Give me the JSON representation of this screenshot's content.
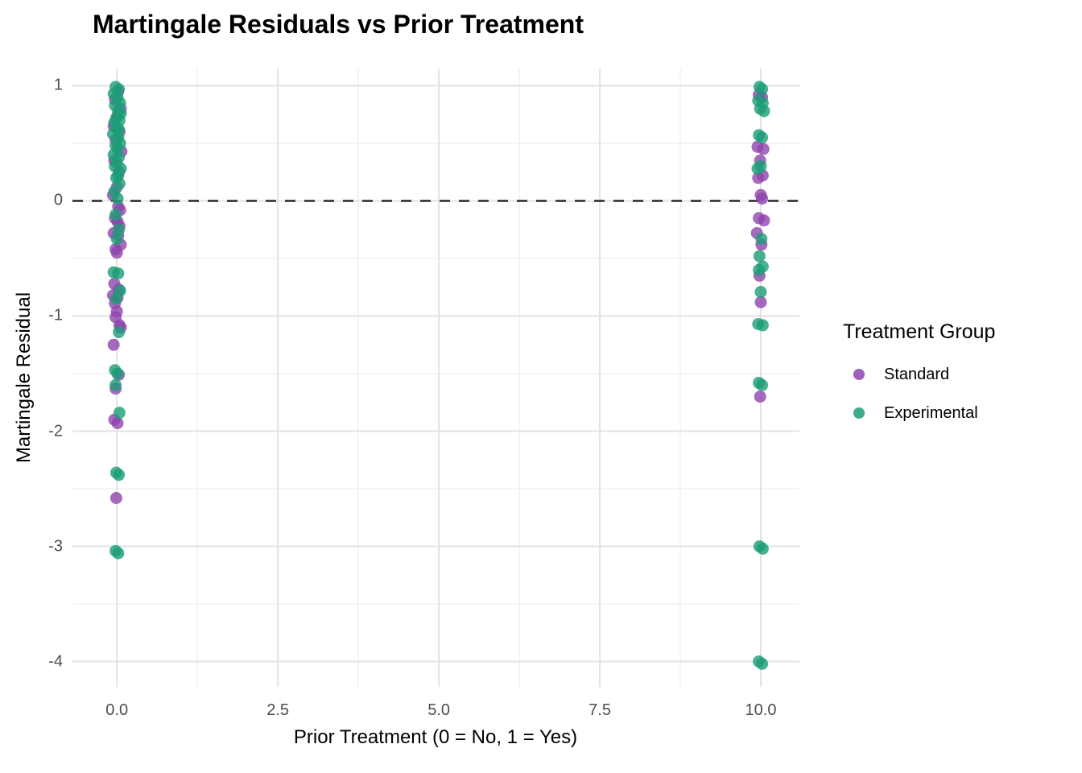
{
  "chart_data": {
    "type": "scatter",
    "title": "Martingale Residuals vs Prior Treatment",
    "xlabel": "Prior Treatment (0 = No, 1 = Yes)",
    "ylabel": "Martingale Residual",
    "x_domain": [
      -0.69,
      10.6
    ],
    "y_domain": [
      -4.22,
      1.15
    ],
    "x_ticks": [
      {
        "v": 0,
        "label": "0.0"
      },
      {
        "v": 2.5,
        "label": "2.5"
      },
      {
        "v": 5,
        "label": "5.0"
      },
      {
        "v": 7.5,
        "label": "7.5"
      },
      {
        "v": 10,
        "label": "10.0"
      }
    ],
    "y_ticks": [
      {
        "v": 1,
        "label": "1"
      },
      {
        "v": 0,
        "label": "0"
      },
      {
        "v": -1,
        "label": "-1"
      },
      {
        "v": -2,
        "label": "-2"
      },
      {
        "v": -3,
        "label": "-3"
      },
      {
        "v": -4,
        "label": "-4"
      }
    ],
    "x_minor": [
      1.25,
      3.75,
      6.25,
      8.75
    ],
    "y_minor": [
      0.5,
      -0.5,
      -1.5,
      -2.5,
      -3.5
    ],
    "grid": "on",
    "reference_line": {
      "y": 0,
      "style": "dashed",
      "color": "#262626"
    },
    "legend": {
      "title": "Treatment Group",
      "position": "right"
    },
    "point_alpha": 0.8,
    "point_radius": 7.5,
    "series": [
      {
        "name": "Standard",
        "color": "#8E44AD",
        "points": [
          [
            0.02,
            0.95
          ],
          [
            -0.03,
            0.88
          ],
          [
            0.06,
            0.8
          ],
          [
            0.01,
            0.74
          ],
          [
            -0.05,
            0.65
          ],
          [
            0.04,
            0.6
          ],
          [
            -0.02,
            0.53
          ],
          [
            0.07,
            0.43
          ],
          [
            -0.04,
            0.35
          ],
          [
            0.03,
            0.25
          ],
          [
            0.0,
            0.12
          ],
          [
            -0.06,
            0.05
          ],
          [
            0.02,
            -0.05
          ],
          [
            0.05,
            -0.08
          ],
          [
            -0.03,
            -0.15
          ],
          [
            0.01,
            -0.18
          ],
          [
            0.04,
            -0.22
          ],
          [
            -0.05,
            -0.28
          ],
          [
            0.02,
            -0.3
          ],
          [
            0.06,
            -0.38
          ],
          [
            -0.02,
            -0.42
          ],
          [
            0.0,
            -0.45
          ],
          [
            -0.04,
            -0.72
          ],
          [
            0.03,
            -0.77
          ],
          [
            -0.06,
            -0.82
          ],
          [
            0.01,
            -0.84
          ],
          [
            -0.03,
            -0.89
          ],
          [
            0.0,
            -0.96
          ],
          [
            -0.02,
            -1.01
          ],
          [
            0.04,
            -1.08
          ],
          [
            0.06,
            -1.1
          ],
          [
            -0.05,
            -1.25
          ],
          [
            0.03,
            -1.51
          ],
          [
            -0.02,
            -1.63
          ],
          [
            -0.04,
            -1.9
          ],
          [
            0.01,
            -1.93
          ],
          [
            -0.01,
            -2.58
          ],
          [
            9.97,
            0.92
          ],
          [
            10.02,
            0.9
          ],
          [
            9.95,
            0.47
          ],
          [
            10.04,
            0.45
          ],
          [
            9.99,
            0.35
          ],
          [
            10.03,
            0.22
          ],
          [
            9.96,
            0.2
          ],
          [
            10.0,
            0.05
          ],
          [
            10.02,
            0.02
          ],
          [
            9.97,
            -0.15
          ],
          [
            10.05,
            -0.17
          ],
          [
            9.94,
            -0.28
          ],
          [
            10.01,
            -0.38
          ],
          [
            9.98,
            -0.65
          ],
          [
            10.0,
            -0.88
          ],
          [
            9.99,
            -1.7
          ]
        ]
      },
      {
        "name": "Experimental",
        "color": "#1B9E77",
        "points": [
          [
            -0.02,
            0.99
          ],
          [
            0.03,
            0.97
          ],
          [
            -0.05,
            0.93
          ],
          [
            0.01,
            0.9
          ],
          [
            0.05,
            0.85
          ],
          [
            -0.03,
            0.83
          ],
          [
            0.02,
            0.78
          ],
          [
            0.06,
            0.76
          ],
          [
            -0.01,
            0.72
          ],
          [
            0.04,
            0.7
          ],
          [
            -0.04,
            0.68
          ],
          [
            0.0,
            0.63
          ],
          [
            0.03,
            0.62
          ],
          [
            -0.06,
            0.58
          ],
          [
            0.02,
            0.55
          ],
          [
            0.05,
            0.5
          ],
          [
            -0.02,
            0.48
          ],
          [
            0.01,
            0.45
          ],
          [
            -0.05,
            0.4
          ],
          [
            0.03,
            0.38
          ],
          [
            0.0,
            0.33
          ],
          [
            -0.03,
            0.3
          ],
          [
            0.06,
            0.28
          ],
          [
            0.02,
            0.22
          ],
          [
            -0.01,
            0.2
          ],
          [
            0.04,
            0.15
          ],
          [
            -0.04,
            0.08
          ],
          [
            0.01,
            0.02
          ],
          [
            -0.02,
            -0.12
          ],
          [
            0.03,
            -0.25
          ],
          [
            0.0,
            -0.33
          ],
          [
            -0.05,
            -0.62
          ],
          [
            0.02,
            -0.63
          ],
          [
            0.05,
            -0.78
          ],
          [
            -0.01,
            -0.85
          ],
          [
            0.03,
            -1.14
          ],
          [
            -0.03,
            -1.47
          ],
          [
            0.01,
            -1.5
          ],
          [
            -0.02,
            -1.6
          ],
          [
            0.04,
            -1.84
          ],
          [
            -0.01,
            -2.36
          ],
          [
            0.03,
            -2.38
          ],
          [
            -0.02,
            -3.04
          ],
          [
            0.02,
            -3.06
          ],
          [
            9.98,
            0.99
          ],
          [
            10.02,
            0.97
          ],
          [
            9.96,
            0.87
          ],
          [
            10.03,
            0.85
          ],
          [
            9.99,
            0.8
          ],
          [
            10.05,
            0.78
          ],
          [
            9.97,
            0.57
          ],
          [
            10.02,
            0.55
          ],
          [
            10.0,
            0.3
          ],
          [
            9.95,
            0.28
          ],
          [
            10.01,
            -0.33
          ],
          [
            9.98,
            -0.48
          ],
          [
            10.03,
            -0.57
          ],
          [
            9.97,
            -0.6
          ],
          [
            10.0,
            -0.79
          ],
          [
            9.96,
            -1.07
          ],
          [
            10.03,
            -1.08
          ],
          [
            9.97,
            -1.58
          ],
          [
            10.02,
            -1.6
          ],
          [
            9.98,
            -3.0
          ],
          [
            10.03,
            -3.02
          ],
          [
            9.97,
            -4.0
          ],
          [
            10.02,
            -4.02
          ]
        ]
      }
    ]
  }
}
